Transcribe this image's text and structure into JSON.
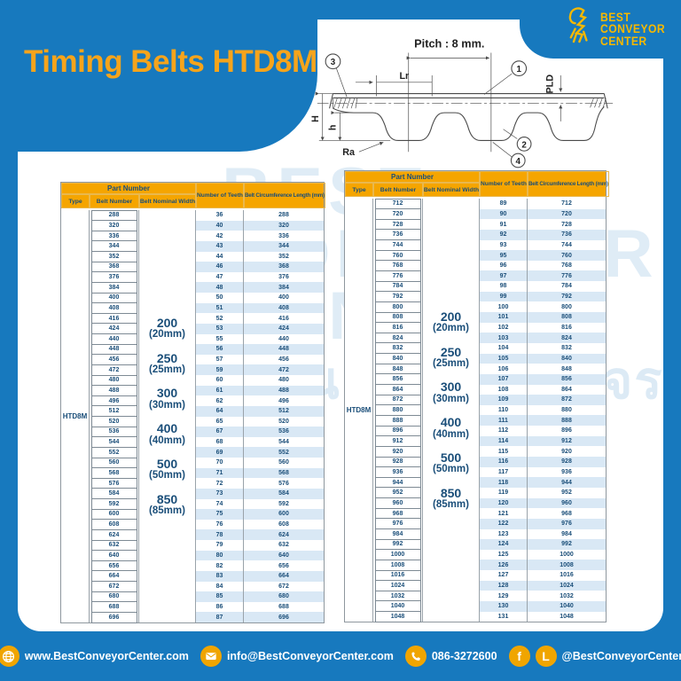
{
  "title": "Timing Belts HTD8M",
  "logo": {
    "line1": "BEST",
    "line2": "CONVEYOR",
    "line3": "CENTER"
  },
  "diagram": {
    "pitch_label": "Pitch : 8 mm.",
    "lr_label": "Lr",
    "pld_label": "PLD",
    "H_label": "H",
    "h_label": "h",
    "ra_label": "Ra",
    "callout_1": "1",
    "callout_2": "2",
    "callout_3": "3",
    "callout_4": "4"
  },
  "table_headers": {
    "part_number": "Part Number",
    "type": "Type",
    "belt_number": "Belt Number",
    "belt_nominal_width": "Belt Nominal Width",
    "number_of_teeth": "Number of Teeth",
    "belt_circumference": "Belt Circumference Length (mm)"
  },
  "type_value": "HTD8M",
  "nominal_widths": [
    {
      "value": "200",
      "mm": "(20mm)"
    },
    {
      "value": "250",
      "mm": "(25mm)"
    },
    {
      "value": "300",
      "mm": "(30mm)"
    },
    {
      "value": "400",
      "mm": "(40mm)"
    },
    {
      "value": "500",
      "mm": "(50mm)"
    },
    {
      "value": "850",
      "mm": "(85mm)"
    }
  ],
  "left_table_rows": [
    [
      288,
      36,
      288
    ],
    [
      320,
      40,
      320
    ],
    [
      336,
      42,
      336
    ],
    [
      344,
      43,
      344
    ],
    [
      352,
      44,
      352
    ],
    [
      368,
      46,
      368
    ],
    [
      376,
      47,
      376
    ],
    [
      384,
      48,
      384
    ],
    [
      400,
      50,
      400
    ],
    [
      408,
      51,
      408
    ],
    [
      416,
      52,
      416
    ],
    [
      424,
      53,
      424
    ],
    [
      440,
      55,
      440
    ],
    [
      448,
      56,
      448
    ],
    [
      456,
      57,
      456
    ],
    [
      472,
      59,
      472
    ],
    [
      480,
      60,
      480
    ],
    [
      488,
      61,
      488
    ],
    [
      496,
      62,
      496
    ],
    [
      512,
      64,
      512
    ],
    [
      520,
      65,
      520
    ],
    [
      536,
      67,
      536
    ],
    [
      544,
      68,
      544
    ],
    [
      552,
      69,
      552
    ],
    [
      560,
      70,
      560
    ],
    [
      568,
      71,
      568
    ],
    [
      576,
      72,
      576
    ],
    [
      584,
      73,
      584
    ],
    [
      592,
      74,
      592
    ],
    [
      600,
      75,
      600
    ],
    [
      608,
      76,
      608
    ],
    [
      624,
      78,
      624
    ],
    [
      632,
      79,
      632
    ],
    [
      640,
      80,
      640
    ],
    [
      656,
      82,
      656
    ],
    [
      664,
      83,
      664
    ],
    [
      672,
      84,
      672
    ],
    [
      680,
      85,
      680
    ],
    [
      688,
      86,
      688
    ],
    [
      696,
      87,
      696
    ]
  ],
  "right_table_rows": [
    [
      712,
      89,
      712
    ],
    [
      720,
      90,
      720
    ],
    [
      728,
      91,
      728
    ],
    [
      736,
      92,
      736
    ],
    [
      744,
      93,
      744
    ],
    [
      760,
      95,
      760
    ],
    [
      768,
      96,
      768
    ],
    [
      776,
      97,
      776
    ],
    [
      784,
      98,
      784
    ],
    [
      792,
      99,
      792
    ],
    [
      800,
      100,
      800
    ],
    [
      808,
      101,
      808
    ],
    [
      816,
      102,
      816
    ],
    [
      824,
      103,
      824
    ],
    [
      832,
      104,
      832
    ],
    [
      840,
      105,
      840
    ],
    [
      848,
      106,
      848
    ],
    [
      856,
      107,
      856
    ],
    [
      864,
      108,
      864
    ],
    [
      872,
      109,
      872
    ],
    [
      880,
      110,
      880
    ],
    [
      888,
      111,
      888
    ],
    [
      896,
      112,
      896
    ],
    [
      912,
      114,
      912
    ],
    [
      920,
      115,
      920
    ],
    [
      928,
      116,
      928
    ],
    [
      936,
      117,
      936
    ],
    [
      944,
      118,
      944
    ],
    [
      952,
      119,
      952
    ],
    [
      960,
      120,
      960
    ],
    [
      968,
      121,
      968
    ],
    [
      976,
      122,
      976
    ],
    [
      984,
      123,
      984
    ],
    [
      992,
      124,
      992
    ],
    [
      1000,
      125,
      1000
    ],
    [
      1008,
      126,
      1008
    ],
    [
      1016,
      127,
      1016
    ],
    [
      1024,
      128,
      1024
    ],
    [
      1032,
      129,
      1032
    ],
    [
      1040,
      130,
      1040
    ],
    [
      1048,
      131,
      1048
    ]
  ],
  "watermark": {
    "line1": "BEST",
    "line2": "CONVEYOR",
    "line3": "CENTER",
    "tagline": "งานโรงงานแบบครบวงจร"
  },
  "footer": {
    "website": "www.BestConveyorCenter.com",
    "email": "info@BestConveyorCenter.com",
    "phone": "086-3272600",
    "social": "@BestConveyorCenter",
    "facebook_letter": "f",
    "line_letter": "L"
  },
  "colors": {
    "blue": "#1779BE",
    "amber": "#F5A500",
    "navy": "#1A4E79",
    "stripe": "#D9E8F5",
    "yellow": "#F5B800"
  }
}
